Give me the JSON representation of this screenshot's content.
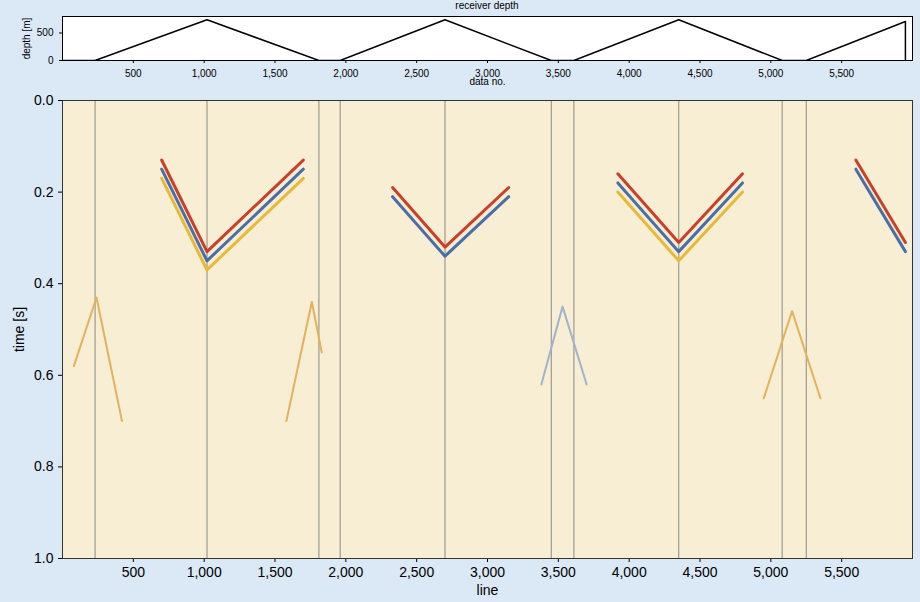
{
  "chart_data": [
    {
      "type": "line",
      "title": "receiver depth",
      "x_label": "data no.",
      "y_label": "depth [m]",
      "xlim": [
        0,
        6000
      ],
      "ylim": [
        0,
        800
      ],
      "xticks": [
        500,
        1000,
        1500,
        2000,
        2500,
        3000,
        3500,
        4000,
        4500,
        5000,
        5500
      ],
      "yticks": [
        0,
        500
      ],
      "series": [
        {
          "color": "#000000",
          "x": [
            1,
            230,
            1020,
            1810,
            1960,
            2700,
            3450,
            3610,
            4350,
            5080,
            5250,
            5950,
            5950
          ],
          "values": [
            0,
            0,
            740,
            0,
            0,
            740,
            0,
            0,
            740,
            0,
            0,
            710,
            0
          ]
        }
      ]
    },
    {
      "type": "line",
      "x_label": "line",
      "y_label": "time [s]",
      "xlim": [
        0,
        6000
      ],
      "ylim": [
        1,
        0
      ],
      "xticks": [
        500,
        1000,
        1500,
        2000,
        2500,
        3000,
        3500,
        4000,
        4500,
        5000,
        5500
      ],
      "yticks": [
        0,
        0.2,
        0.4,
        0.6,
        0.8,
        1
      ],
      "vertical_lines": [
        230,
        1020,
        1810,
        1960,
        2700,
        3450,
        3610,
        4350,
        5080,
        5250
      ],
      "series": [
        {
          "color": "#c8402a",
          "x": [
            700,
            1020,
            1700
          ],
          "values": [
            0.13,
            0.33,
            0.13
          ]
        },
        {
          "color": "#4a6fa8",
          "x": [
            700,
            1020,
            1700
          ],
          "values": [
            0.15,
            0.35,
            0.15
          ]
        },
        {
          "color": "#e8b838",
          "x": [
            700,
            1020,
            1700
          ],
          "values": [
            0.17,
            0.37,
            0.17
          ]
        },
        {
          "color": "#c8402a",
          "x": [
            2330,
            2700,
            3150
          ],
          "values": [
            0.19,
            0.32,
            0.19
          ]
        },
        {
          "color": "#4a6fa8",
          "x": [
            2330,
            2700,
            3150
          ],
          "values": [
            0.21,
            0.34,
            0.21
          ]
        },
        {
          "color": "#c8402a",
          "x": [
            3920,
            4350,
            4800
          ],
          "values": [
            0.16,
            0.31,
            0.16
          ]
        },
        {
          "color": "#4a6fa8",
          "x": [
            3920,
            4350,
            4800
          ],
          "values": [
            0.18,
            0.33,
            0.18
          ]
        },
        {
          "color": "#e8b838",
          "x": [
            3920,
            4350,
            4800
          ],
          "values": [
            0.2,
            0.35,
            0.2
          ]
        },
        {
          "color": "#c8402a",
          "x": [
            5600,
            5950
          ],
          "values": [
            0.13,
            0.31
          ]
        },
        {
          "color": "#4a6fa8",
          "x": [
            5600,
            5950
          ],
          "values": [
            0.15,
            0.33
          ]
        },
        {
          "color": "#e3b25a",
          "x": [
            80,
            240,
            420
          ],
          "values": [
            0.58,
            0.43,
            0.7
          ]
        },
        {
          "color": "#e3b25a",
          "x": [
            1580,
            1760,
            1830
          ],
          "values": [
            0.7,
            0.44,
            0.55
          ]
        },
        {
          "color": "#9fb4cc",
          "x": [
            3380,
            3530,
            3700
          ],
          "values": [
            0.62,
            0.45,
            0.62
          ]
        },
        {
          "color": "#e3b25a",
          "x": [
            4950,
            5150,
            5350
          ],
          "values": [
            0.65,
            0.46,
            0.65
          ]
        }
      ]
    }
  ]
}
